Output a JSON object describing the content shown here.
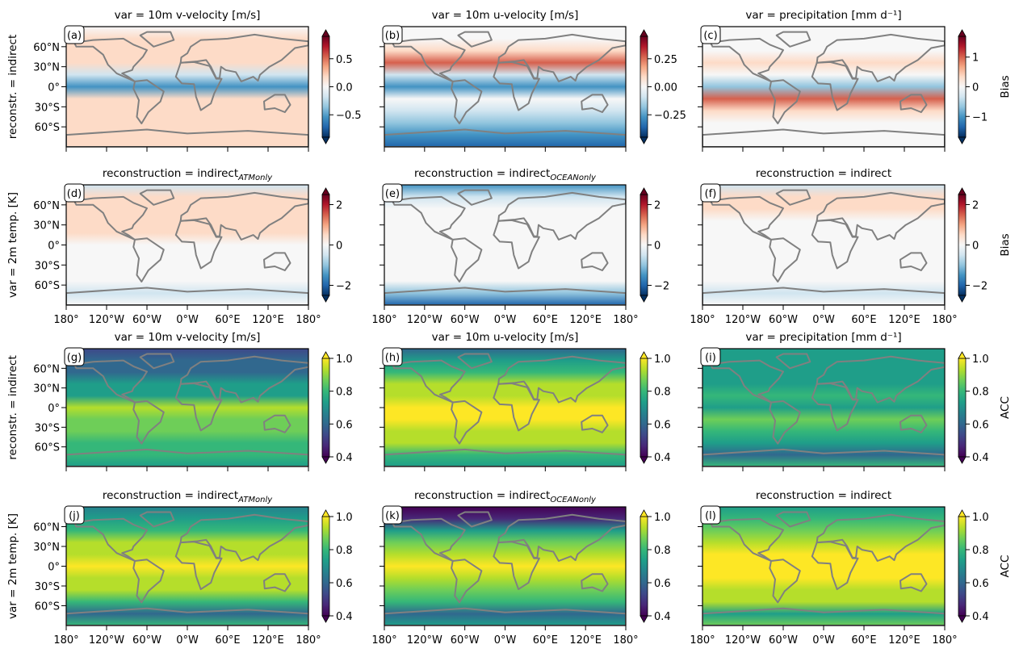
{
  "chart_data": {
    "type": "heatmap",
    "row_labels": [
      "reconstr. = indirect",
      "var = 2m temp. [K]",
      "reconstr. = indirect",
      "var = 2m temp. [K]"
    ],
    "lat_ticks": [
      "60°N",
      "30°N",
      "0°",
      "30°S",
      "60°S"
    ],
    "lon_ticks": [
      "180°",
      "120°W",
      "60°W",
      "0°W",
      "60°E",
      "120°E",
      "180°"
    ],
    "panels": [
      {
        "letter": "(a)",
        "title": "var = 10m v-velocity [m/s]",
        "cmap": "RdBu_r",
        "clim": [
          -0.9,
          0.9
        ],
        "ticks": [
          0.5,
          0.0,
          -0.5
        ],
        "tick_labels": [
          "0.5",
          "0.0",
          "−0.5"
        ],
        "cbar_label": ""
      },
      {
        "letter": "(b)",
        "title": "var = 10m u-velocity [m/s]",
        "cmap": "RdBu_r",
        "clim": [
          -0.45,
          0.45
        ],
        "ticks": [
          0.25,
          0.0,
          -0.25
        ],
        "tick_labels": [
          "0.25",
          "0.00",
          "−0.25"
        ],
        "cbar_label": ""
      },
      {
        "letter": "(c)",
        "title": "var =  precipitation [mm d⁻¹]",
        "cmap": "RdBu_r",
        "clim": [
          -1.7,
          1.7
        ],
        "ticks": [
          1,
          0,
          -1
        ],
        "tick_labels": [
          "1",
          "0",
          "−1"
        ],
        "cbar_label": "Bias"
      },
      {
        "letter": "(d)",
        "title": "reconstruction = indirect",
        "title_sub": "ATMonly",
        "cmap": "RdBu_r",
        "clim": [
          -2.5,
          2.5
        ],
        "ticks": [
          2,
          0,
          -2
        ],
        "tick_labels": [
          "2",
          "0",
          "−2"
        ],
        "cbar_label": ""
      },
      {
        "letter": "(e)",
        "title": "reconstruction = indirect",
        "title_sub": "OCEANonly",
        "cmap": "RdBu_r",
        "clim": [
          -2.5,
          2.5
        ],
        "ticks": [
          2,
          0,
          -2
        ],
        "tick_labels": [
          "2",
          "0",
          "−2"
        ],
        "cbar_label": ""
      },
      {
        "letter": "(f)",
        "title": "reconstruction = indirect",
        "cmap": "RdBu_r",
        "clim": [
          -2.5,
          2.5
        ],
        "ticks": [
          2,
          0,
          -2
        ],
        "tick_labels": [
          "2",
          "0",
          "−2"
        ],
        "cbar_label": "Bias"
      },
      {
        "letter": "(g)",
        "title": "var = 10m v-velocity [m/s]",
        "cmap": "viridis",
        "clim": [
          0.4,
          1.0
        ],
        "ticks": [
          1.0,
          0.8,
          0.6,
          0.4
        ],
        "tick_labels": [
          "1.0",
          "0.8",
          "0.6",
          "0.4"
        ],
        "cbar_label": ""
      },
      {
        "letter": "(h)",
        "title": "var = 10m u-velocity [m/s]",
        "cmap": "viridis",
        "clim": [
          0.4,
          1.0
        ],
        "ticks": [
          1.0,
          0.8,
          0.6,
          0.4
        ],
        "tick_labels": [
          "1.0",
          "0.8",
          "0.6",
          "0.4"
        ],
        "cbar_label": ""
      },
      {
        "letter": "(i)",
        "title": "var =  precipitation [mm d⁻¹]",
        "cmap": "viridis",
        "clim": [
          0.4,
          1.0
        ],
        "ticks": [
          1.0,
          0.8,
          0.6,
          0.4
        ],
        "tick_labels": [
          "1.0",
          "0.8",
          "0.6",
          "0.4"
        ],
        "cbar_label": "ACC"
      },
      {
        "letter": "(j)",
        "title": "reconstruction = indirect",
        "title_sub": "ATMonly",
        "cmap": "viridis",
        "clim": [
          0.4,
          1.0
        ],
        "ticks": [
          1.0,
          0.8,
          0.6,
          0.4
        ],
        "tick_labels": [
          "1.0",
          "0.8",
          "0.6",
          "0.4"
        ],
        "cbar_label": ""
      },
      {
        "letter": "(k)",
        "title": "reconstruction = indirect",
        "title_sub": "OCEANonly",
        "cmap": "viridis",
        "clim": [
          0.4,
          1.0
        ],
        "ticks": [
          1.0,
          0.8,
          0.6,
          0.4
        ],
        "tick_labels": [
          "1.0",
          "0.8",
          "0.6",
          "0.4"
        ],
        "cbar_label": ""
      },
      {
        "letter": "(l)",
        "title": "reconstruction = indirect",
        "cmap": "viridis",
        "clim": [
          0.4,
          1.0
        ],
        "ticks": [
          1.0,
          0.8,
          0.6,
          0.4
        ],
        "tick_labels": [
          "1.0",
          "0.8",
          "0.6",
          "0.4"
        ],
        "cbar_label": "ACC"
      }
    ],
    "coastline_color": "#808080"
  }
}
